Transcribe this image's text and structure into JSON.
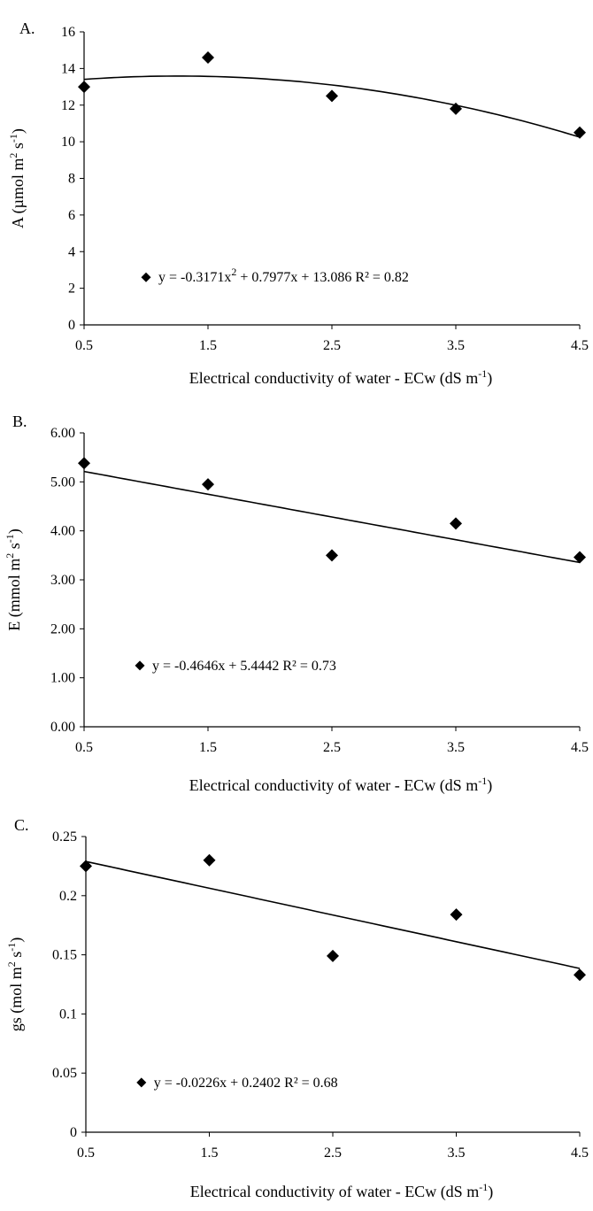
{
  "chart_data": [
    {
      "type": "scatter",
      "panel_label": "A.",
      "ylabel_main": "A (µmol m",
      "ylabel_sup1": "2",
      "ylabel_mid": " s",
      "ylabel_sup2": "-1",
      "ylabel_end": ")",
      "xlabel_main": "Electrical  conductivity of water - ECw (dS m",
      "xlabel_sup": "-1",
      "xlabel_end": ")",
      "xlim": [
        0.5,
        4.5
      ],
      "ylim": [
        0,
        16
      ],
      "xticks": [
        "0.5",
        "1.5",
        "2.5",
        "3.5",
        "4.5"
      ],
      "xtick_values": [
        0.5,
        1.5,
        2.5,
        3.5,
        4.5
      ],
      "yticks": [
        "0",
        "2",
        "4",
        "6",
        "8",
        "10",
        "12",
        "14",
        "16"
      ],
      "ytick_values": [
        0,
        2,
        4,
        6,
        8,
        10,
        12,
        14,
        16
      ],
      "points": [
        {
          "x": 0.5,
          "y": 13.0
        },
        {
          "x": 1.5,
          "y": 14.6
        },
        {
          "x": 2.5,
          "y": 12.5
        },
        {
          "x": 3.5,
          "y": 11.8
        },
        {
          "x": 4.5,
          "y": 10.5
        }
      ],
      "trend": {
        "kind": "quadratic",
        "a": -0.3171,
        "b": 0.7977,
        "c": 13.086
      },
      "equation_pre": "y = -0.3171x",
      "equation_sup": "2",
      "equation_post": " + 0.7977x + 13.086   R² = 0.82",
      "legend_at": {
        "x": 1.0,
        "y": 2.6
      },
      "marker": "diamond",
      "color": "#000000"
    },
    {
      "type": "scatter",
      "panel_label": "B.",
      "ylabel_main": "E  (mmol m",
      "ylabel_sup1": "2",
      "ylabel_mid": " s",
      "ylabel_sup2": "-1",
      "ylabel_end": ")",
      "xlabel_main": "Electrical  conductivity of water - ECw  (dS m",
      "xlabel_sup": "-1",
      "xlabel_end": ")",
      "xlim": [
        0.5,
        4.5
      ],
      "ylim": [
        0,
        6
      ],
      "xticks": [
        "0.5",
        "1.5",
        "2.5",
        "3.5",
        "4.5"
      ],
      "xtick_values": [
        0.5,
        1.5,
        2.5,
        3.5,
        4.5
      ],
      "yticks": [
        "0.00",
        "1.00",
        "2.00",
        "3.00",
        "4.00",
        "5.00",
        "6.00"
      ],
      "ytick_values": [
        0,
        1,
        2,
        3,
        4,
        5,
        6
      ],
      "points": [
        {
          "x": 0.5,
          "y": 5.38
        },
        {
          "x": 1.5,
          "y": 4.95
        },
        {
          "x": 2.5,
          "y": 3.5
        },
        {
          "x": 3.5,
          "y": 4.15
        },
        {
          "x": 4.5,
          "y": 3.46
        }
      ],
      "trend": {
        "kind": "linear",
        "a": 0,
        "b": -0.4646,
        "c": 5.4442
      },
      "equation_pre": "y = -0.4646x + 5.4442   R² = 0.73",
      "equation_sup": "",
      "equation_post": "",
      "legend_at": {
        "x": 0.95,
        "y": 1.25
      },
      "marker": "diamond",
      "color": "#000000"
    },
    {
      "type": "scatter",
      "panel_label": "C.",
      "ylabel_main": "gs (mol m",
      "ylabel_sup1": "2",
      "ylabel_mid": " s",
      "ylabel_sup2": "-1",
      "ylabel_end": ")",
      "xlabel_main": "Electrical  conductivity of water - ECw (dS m",
      "xlabel_sup": "-1",
      "xlabel_end": ")",
      "xlim": [
        0.5,
        4.5
      ],
      "ylim": [
        0,
        0.25
      ],
      "xticks": [
        "0.5",
        "1.5",
        "2.5",
        "3.5",
        "4.5"
      ],
      "xtick_values": [
        0.5,
        1.5,
        2.5,
        3.5,
        4.5
      ],
      "yticks": [
        "0",
        "0.05",
        "0.1",
        "0.15",
        "0.2",
        "0.25"
      ],
      "ytick_values": [
        0,
        0.05,
        0.1,
        0.15,
        0.2,
        0.25
      ],
      "points": [
        {
          "x": 0.5,
          "y": 0.225
        },
        {
          "x": 1.5,
          "y": 0.23
        },
        {
          "x": 2.5,
          "y": 0.149
        },
        {
          "x": 3.5,
          "y": 0.184
        },
        {
          "x": 4.5,
          "y": 0.133
        }
      ],
      "trend": {
        "kind": "linear",
        "a": 0,
        "b": -0.0226,
        "c": 0.2402
      },
      "equation_pre": "y = -0.0226x + 0.2402   R² = 0.68",
      "equation_sup": "",
      "equation_post": "",
      "legend_at": {
        "x": 0.95,
        "y": 0.042
      },
      "marker": "diamond",
      "color": "#000000"
    }
  ]
}
